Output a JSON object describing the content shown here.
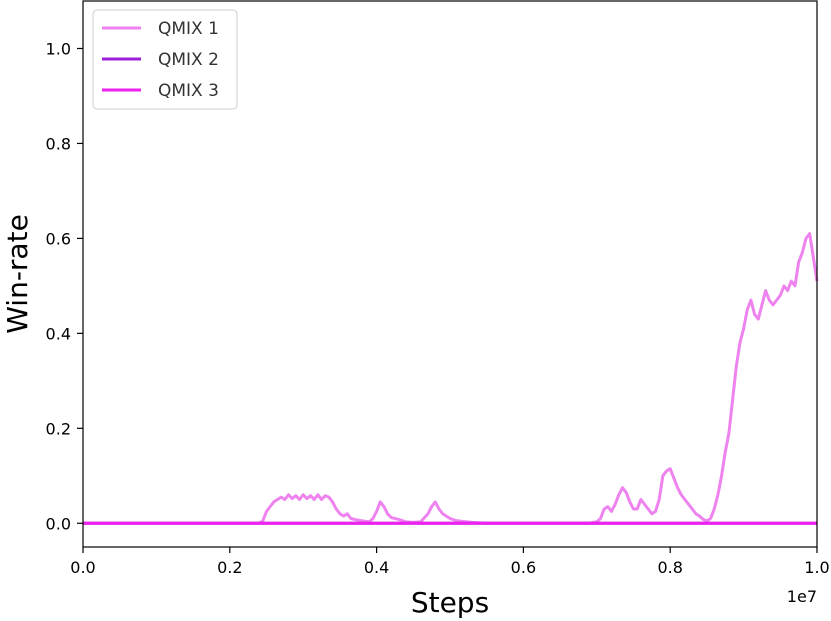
{
  "chart_data": {
    "type": "line",
    "xlabel": "Steps",
    "ylabel": "Win-rate",
    "x_offset_label": "1e7",
    "xlim": [
      0.0,
      1.0
    ],
    "ylim": [
      -0.05,
      1.1
    ],
    "x_ticks": [
      {
        "value": 0.0,
        "label": "0.0"
      },
      {
        "value": 0.2,
        "label": "0.2"
      },
      {
        "value": 0.4,
        "label": "0.4"
      },
      {
        "value": 0.6,
        "label": "0.6"
      },
      {
        "value": 0.8,
        "label": "0.8"
      },
      {
        "value": 1.0,
        "label": "1.0"
      }
    ],
    "y_ticks": [
      {
        "value": 0.0,
        "label": "0.0"
      },
      {
        "value": 0.2,
        "label": "0.2"
      },
      {
        "value": 0.4,
        "label": "0.4"
      },
      {
        "value": 0.6,
        "label": "0.6"
      },
      {
        "value": 0.8,
        "label": "0.8"
      },
      {
        "value": 1.0,
        "label": "1.0"
      }
    ],
    "grid": false,
    "legend_position": "top-left",
    "series": [
      {
        "name": "QMIX 1",
        "color": "#ee82ee",
        "points": [
          [
            0.0,
            0.0
          ],
          [
            0.24,
            0.0
          ],
          [
            0.245,
            0.005
          ],
          [
            0.25,
            0.025
          ],
          [
            0.255,
            0.035
          ],
          [
            0.26,
            0.045
          ],
          [
            0.265,
            0.05
          ],
          [
            0.27,
            0.055
          ],
          [
            0.275,
            0.05
          ],
          [
            0.28,
            0.06
          ],
          [
            0.285,
            0.052
          ],
          [
            0.29,
            0.058
          ],
          [
            0.295,
            0.05
          ],
          [
            0.3,
            0.06
          ],
          [
            0.305,
            0.052
          ],
          [
            0.31,
            0.058
          ],
          [
            0.315,
            0.05
          ],
          [
            0.32,
            0.06
          ],
          [
            0.325,
            0.05
          ],
          [
            0.33,
            0.058
          ],
          [
            0.335,
            0.055
          ],
          [
            0.34,
            0.045
          ],
          [
            0.345,
            0.03
          ],
          [
            0.35,
            0.02
          ],
          [
            0.355,
            0.015
          ],
          [
            0.36,
            0.02
          ],
          [
            0.365,
            0.01
          ],
          [
            0.37,
            0.008
          ],
          [
            0.38,
            0.005
          ],
          [
            0.39,
            0.003
          ],
          [
            0.395,
            0.01
          ],
          [
            0.4,
            0.025
          ],
          [
            0.405,
            0.045
          ],
          [
            0.41,
            0.035
          ],
          [
            0.415,
            0.02
          ],
          [
            0.42,
            0.012
          ],
          [
            0.43,
            0.008
          ],
          [
            0.44,
            0.003
          ],
          [
            0.45,
            0.002
          ],
          [
            0.46,
            0.003
          ],
          [
            0.47,
            0.02
          ],
          [
            0.475,
            0.035
          ],
          [
            0.48,
            0.045
          ],
          [
            0.485,
            0.03
          ],
          [
            0.49,
            0.02
          ],
          [
            0.5,
            0.01
          ],
          [
            0.51,
            0.005
          ],
          [
            0.53,
            0.002
          ],
          [
            0.55,
            0.0
          ],
          [
            0.6,
            0.0
          ],
          [
            0.65,
            0.0
          ],
          [
            0.69,
            0.0
          ],
          [
            0.7,
            0.003
          ],
          [
            0.705,
            0.01
          ],
          [
            0.71,
            0.03
          ],
          [
            0.715,
            0.035
          ],
          [
            0.72,
            0.025
          ],
          [
            0.725,
            0.04
          ],
          [
            0.73,
            0.06
          ],
          [
            0.735,
            0.075
          ],
          [
            0.74,
            0.065
          ],
          [
            0.745,
            0.045
          ],
          [
            0.75,
            0.03
          ],
          [
            0.755,
            0.03
          ],
          [
            0.76,
            0.05
          ],
          [
            0.765,
            0.04
          ],
          [
            0.77,
            0.03
          ],
          [
            0.775,
            0.02
          ],
          [
            0.78,
            0.025
          ],
          [
            0.785,
            0.05
          ],
          [
            0.79,
            0.1
          ],
          [
            0.795,
            0.11
          ],
          [
            0.8,
            0.115
          ],
          [
            0.805,
            0.095
          ],
          [
            0.81,
            0.075
          ],
          [
            0.815,
            0.06
          ],
          [
            0.82,
            0.05
          ],
          [
            0.825,
            0.04
          ],
          [
            0.83,
            0.03
          ],
          [
            0.835,
            0.02
          ],
          [
            0.84,
            0.015
          ],
          [
            0.845,
            0.008
          ],
          [
            0.85,
            0.005
          ],
          [
            0.855,
            0.01
          ],
          [
            0.86,
            0.03
          ],
          [
            0.865,
            0.06
          ],
          [
            0.87,
            0.1
          ],
          [
            0.875,
            0.15
          ],
          [
            0.88,
            0.19
          ],
          [
            0.885,
            0.26
          ],
          [
            0.89,
            0.33
          ],
          [
            0.895,
            0.38
          ],
          [
            0.9,
            0.41
          ],
          [
            0.905,
            0.45
          ],
          [
            0.91,
            0.47
          ],
          [
            0.915,
            0.44
          ],
          [
            0.92,
            0.43
          ],
          [
            0.925,
            0.46
          ],
          [
            0.93,
            0.49
          ],
          [
            0.935,
            0.47
          ],
          [
            0.94,
            0.46
          ],
          [
            0.945,
            0.47
          ],
          [
            0.95,
            0.48
          ],
          [
            0.955,
            0.5
          ],
          [
            0.96,
            0.49
          ],
          [
            0.965,
            0.51
          ],
          [
            0.97,
            0.5
          ],
          [
            0.975,
            0.55
          ],
          [
            0.98,
            0.57
          ],
          [
            0.985,
            0.6
          ],
          [
            0.99,
            0.61
          ],
          [
            0.995,
            0.56
          ],
          [
            1.0,
            0.51
          ]
        ]
      },
      {
        "name": "QMIX 2",
        "color": "#9b1fd6",
        "points": [
          [
            0.0,
            0.0
          ],
          [
            1.0,
            0.0
          ]
        ]
      },
      {
        "name": "QMIX 3",
        "color": "#ee22ee",
        "points": [
          [
            0.0,
            0.0
          ],
          [
            1.0,
            0.0
          ]
        ]
      }
    ]
  }
}
